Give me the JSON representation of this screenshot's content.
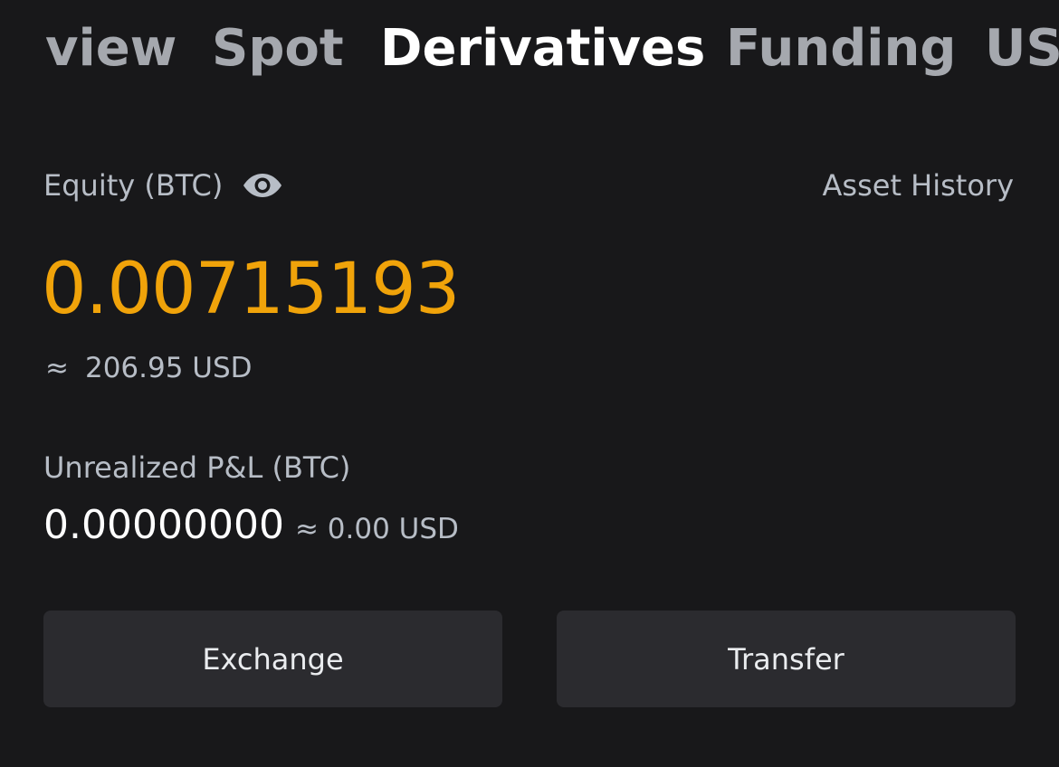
{
  "tabs": [
    {
      "label": "view",
      "active": false
    },
    {
      "label": "Spot",
      "active": false
    },
    {
      "label": "Derivatives",
      "active": true
    },
    {
      "label": "Funding",
      "active": false
    },
    {
      "label": "US",
      "active": false
    }
  ],
  "equity": {
    "label": "Equity (BTC)",
    "visibility_icon": "eye-icon",
    "value": "0.00715193",
    "approx_symbol": "≈",
    "usd_value": "206.95 USD"
  },
  "asset_history_label": "Asset History",
  "unrealized_pnl": {
    "label": "Unrealized P&L (BTC)",
    "value": "0.00000000",
    "usd_value": "≈ 0.00 USD"
  },
  "actions": {
    "exchange_label": "Exchange",
    "transfer_label": "Transfer"
  },
  "colors": {
    "background": "#18181a",
    "accent": "#f0a30a",
    "button_bg": "#2b2b2f",
    "muted_text": "#b7bdc6"
  }
}
